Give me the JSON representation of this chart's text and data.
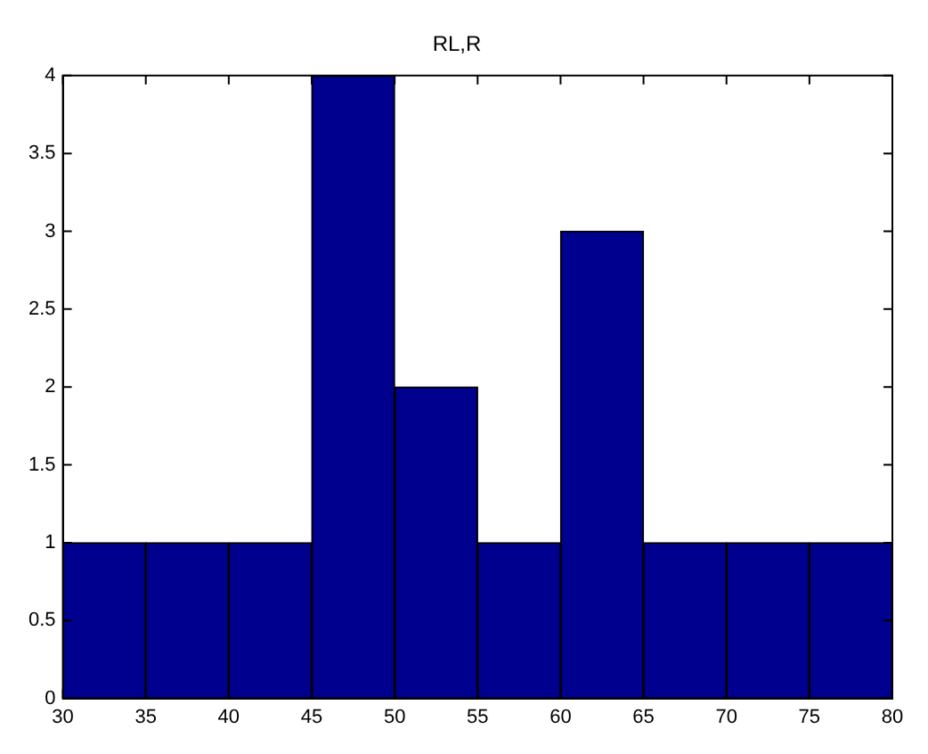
{
  "chart_data": {
    "type": "histogram",
    "title": "RL,R",
    "bins": [
      30,
      35,
      40,
      45,
      50,
      55,
      60,
      65,
      70,
      75,
      80
    ],
    "values": [
      1,
      1,
      1,
      4,
      2,
      1,
      3,
      1,
      1,
      1
    ],
    "color": "#00008f",
    "xlim": [
      30,
      80
    ],
    "xticks": [
      30,
      35,
      40,
      45,
      50,
      55,
      60,
      65,
      70,
      75,
      80
    ],
    "ylim": [
      0,
      4
    ],
    "yticks": [
      0,
      0.5,
      1,
      1.5,
      2,
      2.5,
      3,
      3.5,
      4
    ],
    "grid": false
  }
}
